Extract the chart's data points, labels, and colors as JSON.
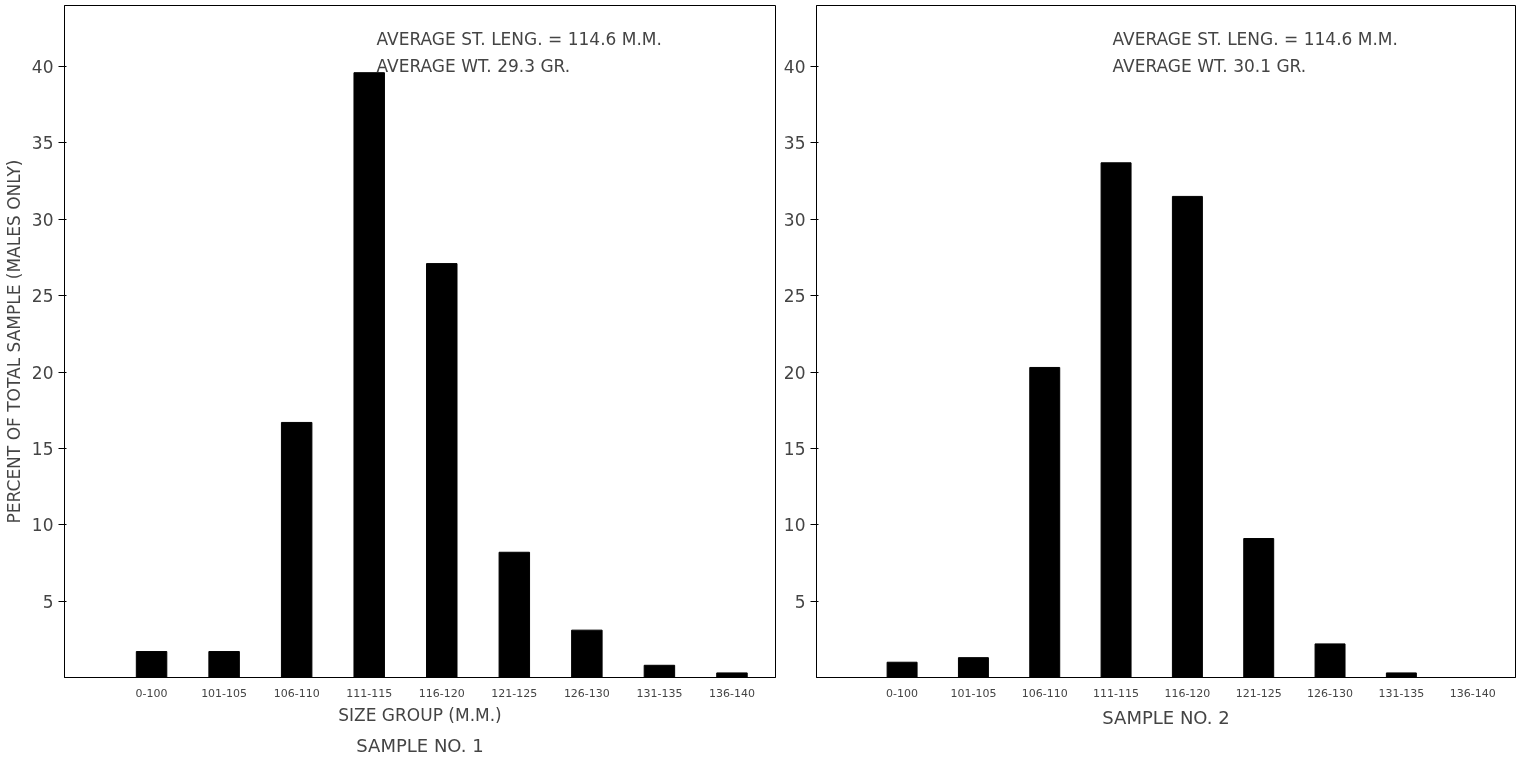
{
  "chart_data": [
    {
      "type": "bar",
      "title": "SAMPLE NO. 1",
      "xlabel": "SIZE GROUP (M.M.)",
      "ylabel": "PERCENT OF TOTAL SAMPLE (MALES ONLY)",
      "categories": [
        "0-100",
        "101-105",
        "106-110",
        "111-115",
        "116-120",
        "121-125",
        "126-130",
        "131-135",
        "136-140"
      ],
      "values": [
        1.7,
        1.7,
        16.7,
        39.6,
        27.1,
        8.2,
        3.1,
        0.8,
        0.3
      ],
      "color": "#000000",
      "ylim": [
        0,
        44
      ],
      "yticks": [
        5,
        10,
        15,
        20,
        25,
        30,
        35,
        40
      ],
      "grid": false,
      "annotations": [
        "AVERAGE ST. LENG. = 114.6 M.M.",
        "AVERAGE WT. 29.3 GR."
      ]
    },
    {
      "type": "bar",
      "title": "SAMPLE NO. 2",
      "categories": [
        "0-100",
        "101-105",
        "106-110",
        "111-115",
        "116-120",
        "121-125",
        "126-130",
        "131-135",
        "136-140"
      ],
      "values": [
        1.0,
        1.3,
        20.3,
        33.7,
        31.5,
        9.1,
        2.2,
        0.3,
        0
      ],
      "color": "#000000",
      "ylim": [
        0,
        44
      ],
      "yticks": [
        5,
        10,
        15,
        20,
        25,
        30,
        35,
        40
      ],
      "grid": false,
      "annotations": [
        "AVERAGE ST. LENG. = 114.6 M.M.",
        "AVERAGE WT. 30.1 GR."
      ]
    }
  ]
}
